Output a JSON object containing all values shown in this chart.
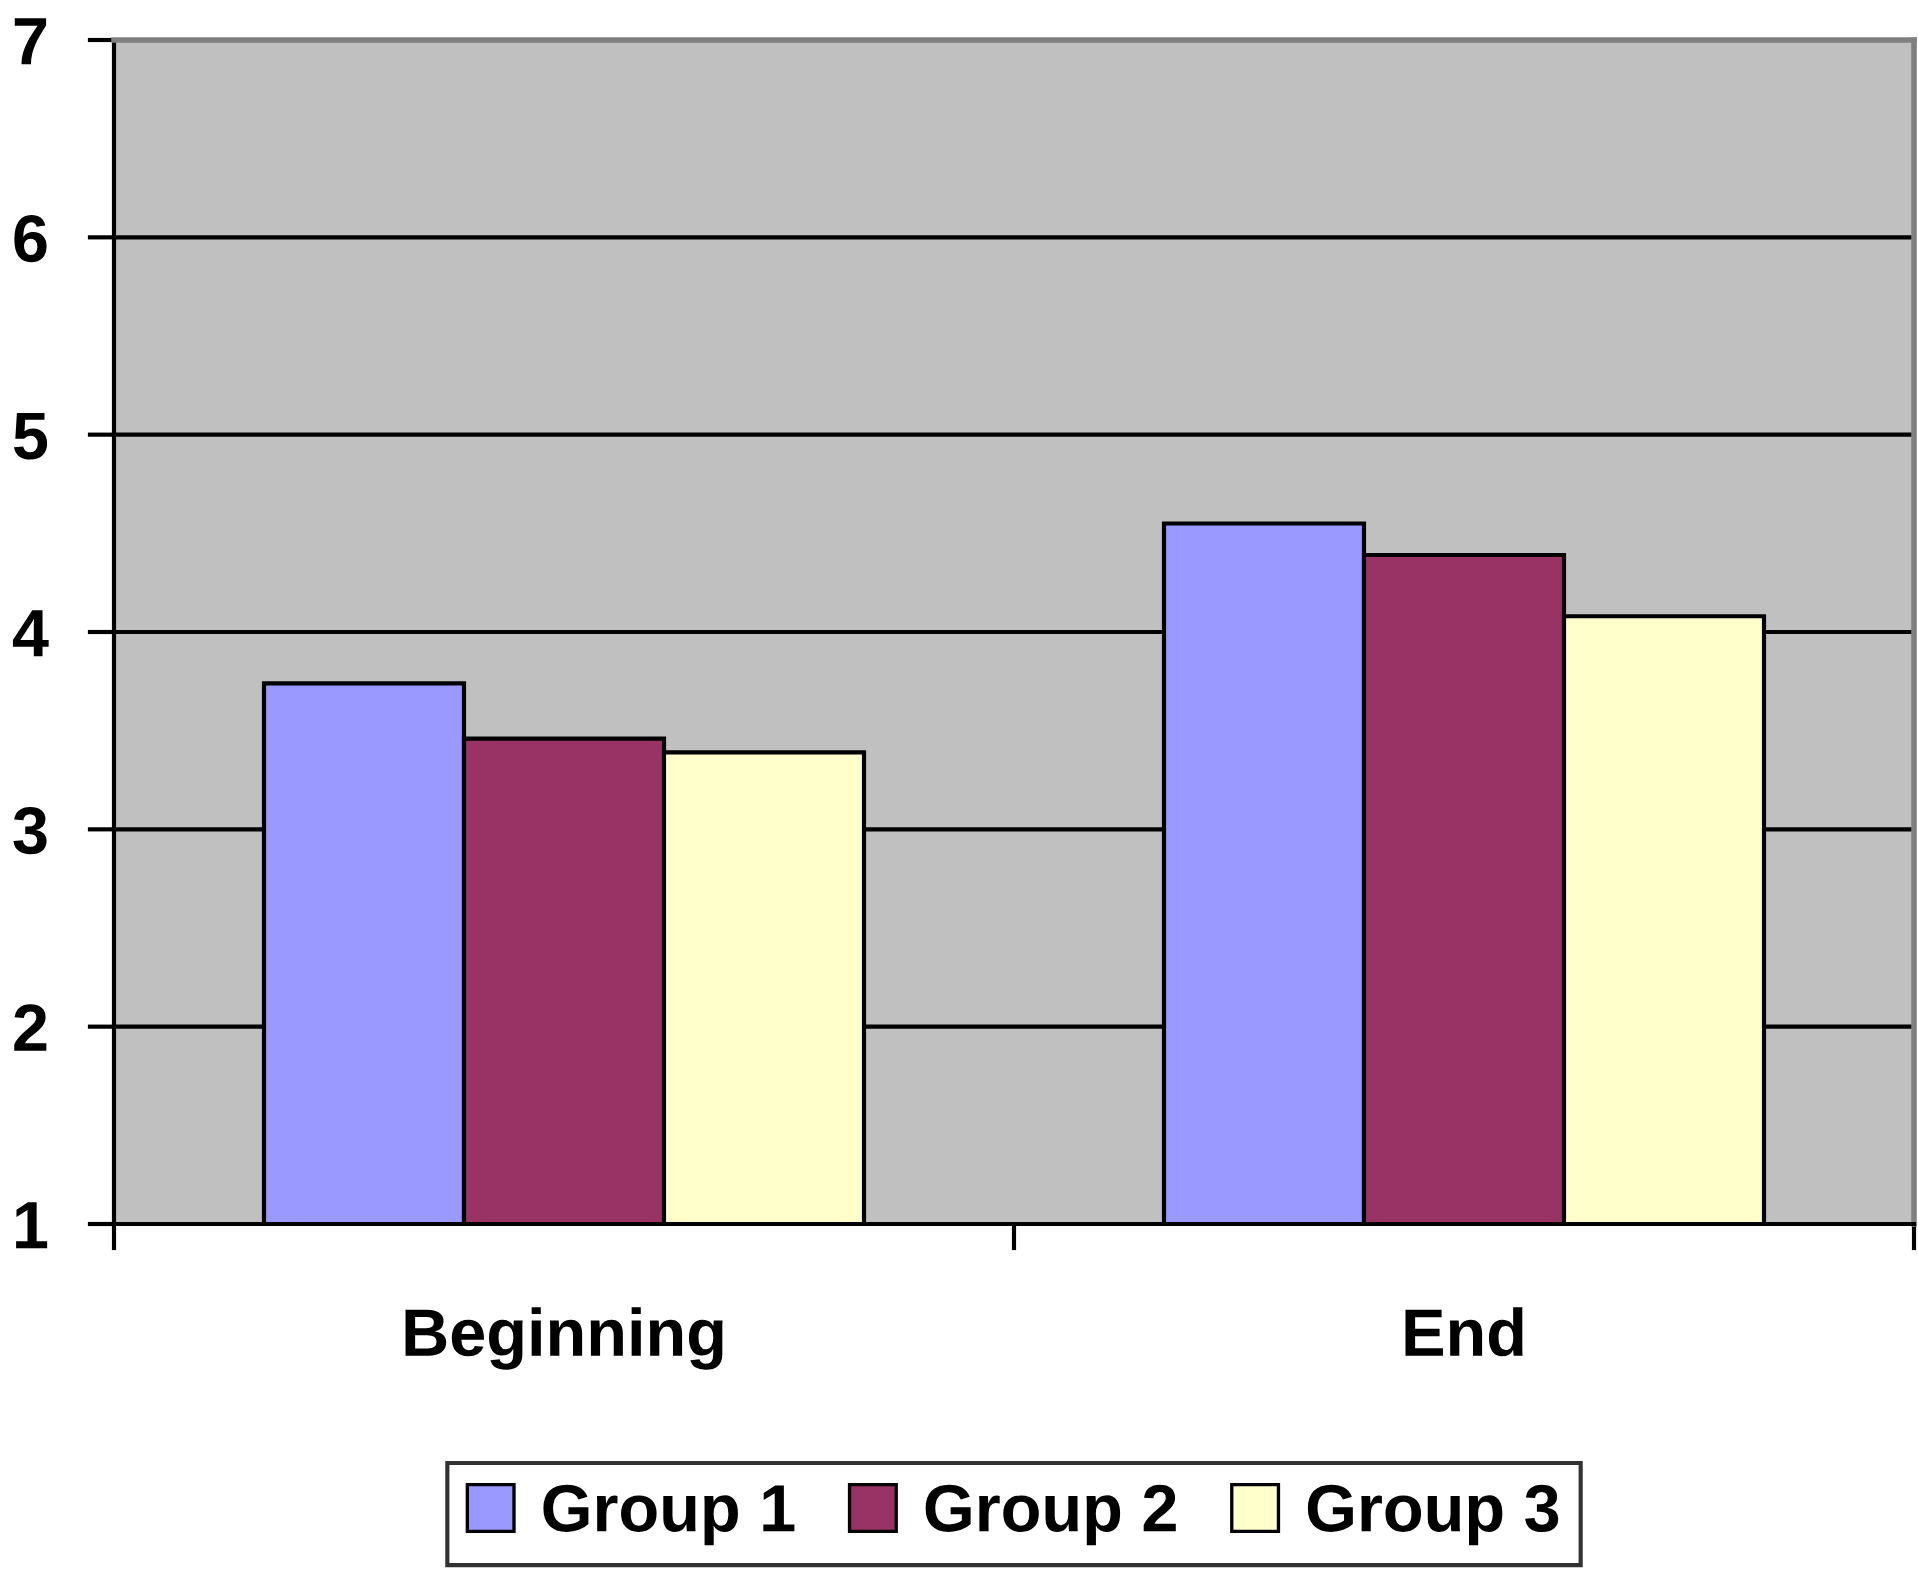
{
  "chart_data": {
    "type": "bar",
    "categories": [
      "Beginning",
      "End"
    ],
    "series": [
      {
        "name": "Group 1",
        "color": "#9999ff",
        "values": [
          3.74,
          4.55
        ]
      },
      {
        "name": "Group 2",
        "color": "#993366",
        "values": [
          3.46,
          4.39
        ]
      },
      {
        "name": "Group 3",
        "color": "#ffffcc",
        "values": [
          3.39,
          4.08
        ]
      }
    ],
    "ylim": [
      1,
      7
    ],
    "yticks": [
      1,
      2,
      3,
      4,
      5,
      6,
      7
    ],
    "grid": "y",
    "legend": "bottom"
  }
}
